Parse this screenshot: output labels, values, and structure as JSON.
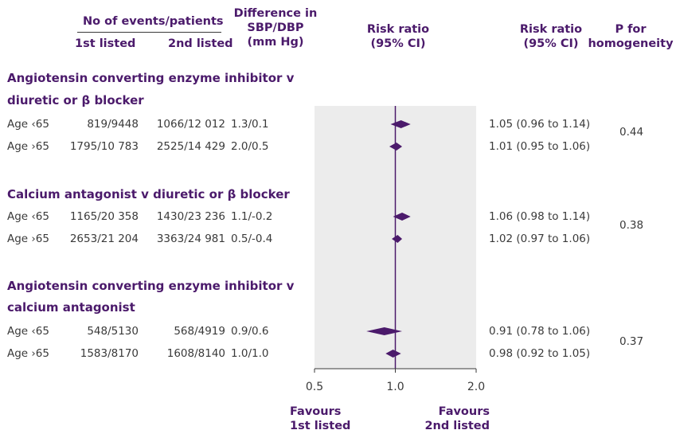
{
  "headers": {
    "events_title": "No of events/patients",
    "col1": "1st listed",
    "col2": "2nd listed",
    "diff": "Difference in\nSBP/DBP\n(mm Hg)",
    "rr_plot": "Risk ratio\n(95% CI)",
    "rr_text": "Risk ratio\n(95% CI)",
    "p": "P for\nhomogeneity"
  },
  "groups": [
    {
      "title_line1": "Angiotensin converting enzyme inhibitor v",
      "title_line2": "diuretic or β blocker",
      "p_value": "0.44"
    },
    {
      "title_line1": "Calcium antagonist v diuretic or β blocker",
      "title_line2": "",
      "p_value": "0.38"
    },
    {
      "title_line1": "Angiotensin converting enzyme inhibitor v",
      "title_line2": "calcium antagonist",
      "p_value": "0.37"
    }
  ],
  "rows": [
    {
      "label": "Age ‹65",
      "first": "819/9448",
      "second": "1066/12 012",
      "diff": "1.3/0.1",
      "rr_text": "1.05 (0.96 to 1.14)"
    },
    {
      "label": "Age ›65",
      "first": "1795/10 783",
      "second": "2525/14 429",
      "diff": "2.0/0.5",
      "rr_text": "1.01 (0.95 to 1.06)"
    },
    {
      "label": "Age ‹65",
      "first": "1165/20 358",
      "second": "1430/23 236",
      "diff": "1.1/-0.2",
      "rr_text": "1.06 (0.98 to 1.14)"
    },
    {
      "label": "Age ›65",
      "first": "2653/21 204",
      "second": "3363/24 981",
      "diff": "0.5/-0.4",
      "rr_text": "1.02 (0.97 to 1.06)"
    },
    {
      "label": "Age ‹65",
      "first": "548/5130",
      "second": "568/4919",
      "diff": "0.9/0.6",
      "rr_text": "0.91 (0.78 to 1.06)"
    },
    {
      "label": "Age ›65",
      "first": "1583/8170",
      "second": "1608/8140",
      "diff": "1.0/1.0",
      "rr_text": "0.98 (0.92 to 1.05)"
    }
  ],
  "footer": {
    "favours_left": "Favours\n1st listed",
    "favours_right": "Favours\n2nd listed"
  },
  "chart_data": {
    "type": "forest",
    "x_scale": "log",
    "xlim": [
      0.5,
      2.0
    ],
    "ticks": [
      0.5,
      1.0,
      2.0
    ],
    "tick_labels": [
      "0.5",
      "1.0",
      "2.0"
    ],
    "reference_line": 1.0,
    "points": [
      {
        "rr": 1.05,
        "lo": 0.96,
        "hi": 1.14
      },
      {
        "rr": 1.01,
        "lo": 0.95,
        "hi": 1.06
      },
      {
        "rr": 1.06,
        "lo": 0.98,
        "hi": 1.14
      },
      {
        "rr": 1.02,
        "lo": 0.97,
        "hi": 1.06
      },
      {
        "rr": 0.91,
        "lo": 0.78,
        "hi": 1.06
      },
      {
        "rr": 0.98,
        "lo": 0.92,
        "hi": 1.05
      }
    ],
    "colors": {
      "marker": "#4b1a6b",
      "panel": "#ececec",
      "axis": "#3a3a3a",
      "reference": "#4b1a6b"
    }
  }
}
